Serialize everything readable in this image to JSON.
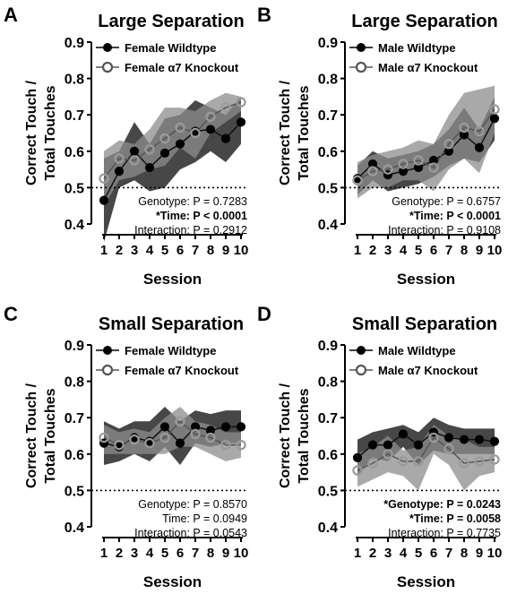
{
  "chart_data": [
    {
      "type": "line",
      "panel_letter": "A",
      "title": "Large Separation",
      "xlabel": "Session",
      "ylabel_lines": [
        "Correct Touch /",
        "Total Touches"
      ],
      "x": [
        1,
        2,
        3,
        4,
        5,
        6,
        7,
        8,
        9,
        10
      ],
      "xlim": [
        1,
        10
      ],
      "ylim": [
        0.4,
        0.9
      ],
      "yticks": [
        "0.4",
        "0.5",
        "0.6",
        "0.7",
        "0.8",
        "0.9"
      ],
      "chance_line": 0.5,
      "legend_position": "top-right",
      "series": [
        {
          "name": "Female Wildtype",
          "values": [
            0.465,
            0.545,
            0.6,
            0.555,
            0.595,
            0.62,
            0.655,
            0.66,
            0.635,
            0.68
          ],
          "upper": [
            0.58,
            0.6,
            0.68,
            0.62,
            0.69,
            0.7,
            0.74,
            0.72,
            0.7,
            0.75
          ],
          "lower": [
            0.35,
            0.5,
            0.52,
            0.49,
            0.5,
            0.55,
            0.57,
            0.6,
            0.57,
            0.62
          ]
        },
        {
          "name": "Female α7 Knockout",
          "values": [
            0.525,
            0.58,
            0.575,
            0.605,
            0.635,
            0.665,
            0.65,
            0.695,
            0.72,
            0.735
          ],
          "upper": [
            0.6,
            0.63,
            0.62,
            0.66,
            0.72,
            0.72,
            0.71,
            0.74,
            0.76,
            0.75
          ],
          "lower": [
            0.45,
            0.52,
            0.53,
            0.55,
            0.56,
            0.61,
            0.58,
            0.65,
            0.68,
            0.71
          ]
        }
      ],
      "stats": [
        {
          "text": "Genotype: P = 0.7283",
          "bold": false
        },
        {
          "text": "*Time: P < 0.0001",
          "bold": true
        },
        {
          "text": "Interaction: P = 0.2912",
          "bold": false
        }
      ]
    },
    {
      "type": "line",
      "panel_letter": "B",
      "title": "Large Separation",
      "xlabel": "Session",
      "ylabel_lines": [
        "Correct Touch /",
        "Total Touches"
      ],
      "x": [
        1,
        2,
        3,
        4,
        5,
        6,
        7,
        8,
        9,
        10
      ],
      "xlim": [
        1,
        10
      ],
      "ylim": [
        0.4,
        0.9
      ],
      "yticks": [
        "0.4",
        "0.5",
        "0.6",
        "0.7",
        "0.8",
        "0.9"
      ],
      "chance_line": 0.5,
      "legend_position": "top-right",
      "series": [
        {
          "name": "Male Wildtype",
          "values": [
            0.525,
            0.565,
            0.535,
            0.545,
            0.555,
            0.575,
            0.6,
            0.645,
            0.61,
            0.69
          ],
          "upper": [
            0.56,
            0.6,
            0.58,
            0.59,
            0.6,
            0.62,
            0.66,
            0.72,
            0.66,
            0.75
          ],
          "lower": [
            0.48,
            0.52,
            0.49,
            0.5,
            0.51,
            0.53,
            0.56,
            0.58,
            0.57,
            0.63
          ]
        },
        {
          "name": "Male α7 Knockout",
          "values": [
            0.52,
            0.545,
            0.55,
            0.565,
            0.575,
            0.555,
            0.62,
            0.665,
            0.655,
            0.715
          ],
          "upper": [
            0.57,
            0.59,
            0.6,
            0.61,
            0.63,
            0.62,
            0.7,
            0.76,
            0.77,
            0.78
          ],
          "lower": [
            0.47,
            0.5,
            0.5,
            0.52,
            0.52,
            0.49,
            0.55,
            0.58,
            0.54,
            0.65
          ]
        }
      ],
      "stats": [
        {
          "text": "Genotype: P = 0.6757",
          "bold": false
        },
        {
          "text": "*Time: P < 0.0001",
          "bold": true
        },
        {
          "text": "Interaction: P = 0.9108",
          "bold": false
        }
      ]
    },
    {
      "type": "line",
      "panel_letter": "C",
      "title": "Small Separation",
      "xlabel": "Session",
      "ylabel_lines": [
        "Correct Touch /",
        "Total Touches"
      ],
      "x": [
        1,
        2,
        3,
        4,
        5,
        6,
        7,
        8,
        9,
        10
      ],
      "xlim": [
        1,
        10
      ],
      "ylim": [
        0.4,
        0.9
      ],
      "yticks": [
        "0.4",
        "0.5",
        "0.6",
        "0.7",
        "0.8",
        "0.9"
      ],
      "chance_line": 0.5,
      "legend_position": "top-right",
      "series": [
        {
          "name": "Female Wildtype",
          "values": [
            0.63,
            0.62,
            0.645,
            0.635,
            0.675,
            0.63,
            0.675,
            0.665,
            0.675,
            0.675
          ],
          "upper": [
            0.69,
            0.67,
            0.69,
            0.69,
            0.73,
            0.69,
            0.72,
            0.71,
            0.72,
            0.72
          ],
          "lower": [
            0.57,
            0.58,
            0.6,
            0.58,
            0.62,
            0.57,
            0.63,
            0.62,
            0.63,
            0.63
          ]
        },
        {
          "name": "Female α7 Knockout",
          "values": [
            0.645,
            0.625,
            0.64,
            0.63,
            0.645,
            0.69,
            0.655,
            0.645,
            0.625,
            0.625
          ],
          "upper": [
            0.68,
            0.66,
            0.67,
            0.66,
            0.7,
            0.73,
            0.69,
            0.68,
            0.66,
            0.66
          ],
          "lower": [
            0.6,
            0.6,
            0.6,
            0.6,
            0.6,
            0.62,
            0.62,
            0.6,
            0.58,
            0.59
          ]
        }
      ],
      "stats": [
        {
          "text": "Genotype: P = 0.8570",
          "bold": false
        },
        {
          "text": "Time: P = 0.0949",
          "bold": false
        },
        {
          "text": "Interaction: P = 0.0543",
          "bold": false
        }
      ]
    },
    {
      "type": "line",
      "panel_letter": "D",
      "title": "Small Separation",
      "xlabel": "Session",
      "ylabel_lines": [
        "Correct Touch /",
        "Total Touches"
      ],
      "x": [
        1,
        2,
        3,
        4,
        5,
        6,
        7,
        8,
        9,
        10
      ],
      "xlim": [
        1,
        10
      ],
      "ylim": [
        0.4,
        0.9
      ],
      "yticks": [
        "0.4",
        "0.5",
        "0.6",
        "0.7",
        "0.8",
        "0.9"
      ],
      "chance_line": 0.5,
      "legend_position": "top-right",
      "series": [
        {
          "name": "Male Wildtype",
          "values": [
            0.59,
            0.625,
            0.625,
            0.655,
            0.625,
            0.66,
            0.645,
            0.64,
            0.64,
            0.635
          ],
          "upper": [
            0.64,
            0.66,
            0.67,
            0.68,
            0.66,
            0.7,
            0.68,
            0.67,
            0.67,
            0.67
          ],
          "lower": [
            0.54,
            0.59,
            0.58,
            0.62,
            0.57,
            0.61,
            0.6,
            0.6,
            0.6,
            0.6
          ]
        },
        {
          "name": "Male α7 Knockout",
          "values": [
            0.555,
            0.575,
            0.6,
            0.58,
            0.58,
            0.645,
            0.615,
            0.575,
            0.58,
            0.585
          ],
          "upper": [
            0.6,
            0.62,
            0.65,
            0.61,
            0.62,
            0.68,
            0.65,
            0.64,
            0.62,
            0.62
          ],
          "lower": [
            0.51,
            0.53,
            0.55,
            0.54,
            0.5,
            0.6,
            0.57,
            0.5,
            0.54,
            0.55
          ]
        }
      ],
      "stats": [
        {
          "text": "*Genotype: P = 0.0243",
          "bold": true
        },
        {
          "text": "*Time: P = 0.0058",
          "bold": true
        },
        {
          "text": "Interaction: P = 0.7735",
          "bold": false
        }
      ]
    }
  ],
  "colors": {
    "wildtype_band": "#3d3d3d",
    "knockout_band": "#8c8c8c",
    "wildtype_marker": "#000000",
    "knockout_marker": "#9a9a9a"
  }
}
